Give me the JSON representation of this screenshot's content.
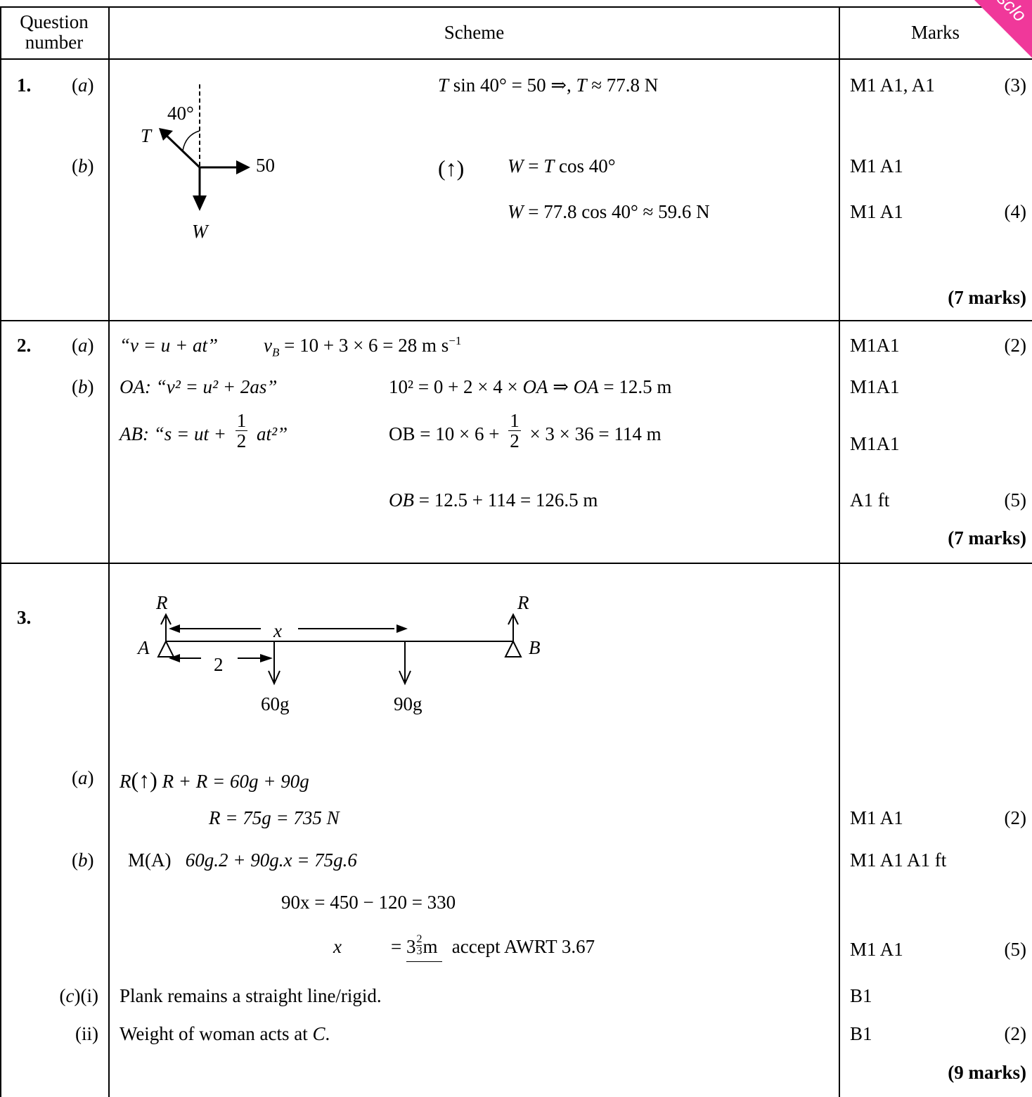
{
  "header": {
    "question_l1": "Question",
    "question_l2": "number",
    "scheme": "Scheme",
    "marks": "Marks"
  },
  "ribbon": {
    "text": "sclo"
  },
  "q1": {
    "num": "1.",
    "a_label": "a",
    "b_label": "b",
    "diagram": {
      "angle": "40°",
      "t": "T",
      "force": "50",
      "w": "W"
    },
    "a_line": {
      "lhs": "T",
      "mid": " sin 40° = 50 ⇒, ",
      "t2": "T",
      "rhs": " ≈ 77.8 N"
    },
    "a_marks": "M1 A1, A1",
    "a_total": "(3)",
    "b_arrow": "(↑)",
    "b_line1": {
      "w": "W",
      "eq": " = ",
      "t": "T",
      "rhs": " cos 40°"
    },
    "b_line2": {
      "w": "W",
      "rhs": " = 77.8 cos 40° ≈ 59.6 N"
    },
    "b_marks1": "M1 A1",
    "b_marks2": "M1 A1",
    "b_total": "(4)",
    "total": "(7 marks)"
  },
  "q2": {
    "num": "2.",
    "a_label": "a",
    "b_label": "b",
    "a_line": "“v = u + at”",
    "a_calc_v": "v",
    "a_calc_sub": "B",
    "a_calc_rest": " = 10 + 3 × 6 = 28 m s",
    "a_calc_sup": "−1",
    "a_marks": "M1A1",
    "a_total": "(2)",
    "b1_name": "OA",
    "b1_formula": ": “v² = u² + 2as”",
    "b1_calc_a": "10² = 0 + 2 × 4 × ",
    "b1_oa": "OA",
    "b1_arrow": " ⇒ ",
    "b1_oa2": "OA",
    "b1_res": " = 12.5 m",
    "b1_marks": "M1A1",
    "b2_name": "AB",
    "b2_formula_a": ": “s = ut + ",
    "b2_formula_b": " at²”",
    "frac_num": "1",
    "frac_den": "2",
    "b2_calc_a": "OB = 10 × 6 + ",
    "b2_calc_b": " × 3 × 36 = 114 m",
    "b2_marks": "M1A1",
    "b3_ob": "OB",
    "b3_rest": " = 12.5 + 114 = 126.5 m",
    "b3_marks": "A1 ft",
    "b_total": "(5)",
    "total": "(7 marks)"
  },
  "q3": {
    "num": "3.",
    "diagram": {
      "r": "R",
      "a": "A",
      "b": "B",
      "x": "x",
      "two": "2",
      "w60": "60g",
      "w90": "90g"
    },
    "a_label": "a",
    "a_line1_r": "R",
    "a_line1_arrow": "(↑)",
    "a_line1_rest": "R + R = 60g + 90g",
    "a_line2": "R = 75g = 735 N",
    "a_marks": "M1 A1",
    "a_total": "(2)",
    "b_label": "b",
    "b_line1_m": "M(A)",
    "b_line1_rest": "60g.2 + 90g.x = 75g.6",
    "b_marks1": "M1 A1 A1 ft",
    "b_line2": "90x = 450 − 120 = 330",
    "b_line3_x": "x",
    "b_line3_eq": "=",
    "b_line3_val": "3",
    "b_line3_fn": "2",
    "b_line3_fd": "3",
    "b_line3_unit": "m",
    "b_line3_note": "accept AWRT 3.67",
    "b_marks3": "M1 A1",
    "b_total": "(5)",
    "c_label": "c",
    "c_i": "(i)",
    "c_i_text": "Plank remains a straight line/rigid.",
    "c_i_marks": "B1",
    "c_ii": "(ii)",
    "c_ii_text_a": "Weight of woman acts at ",
    "c_ii_c": "C",
    "c_ii_text_b": ".",
    "c_ii_marks": "B1",
    "c_total": "(2)",
    "total": "(9 marks)"
  }
}
